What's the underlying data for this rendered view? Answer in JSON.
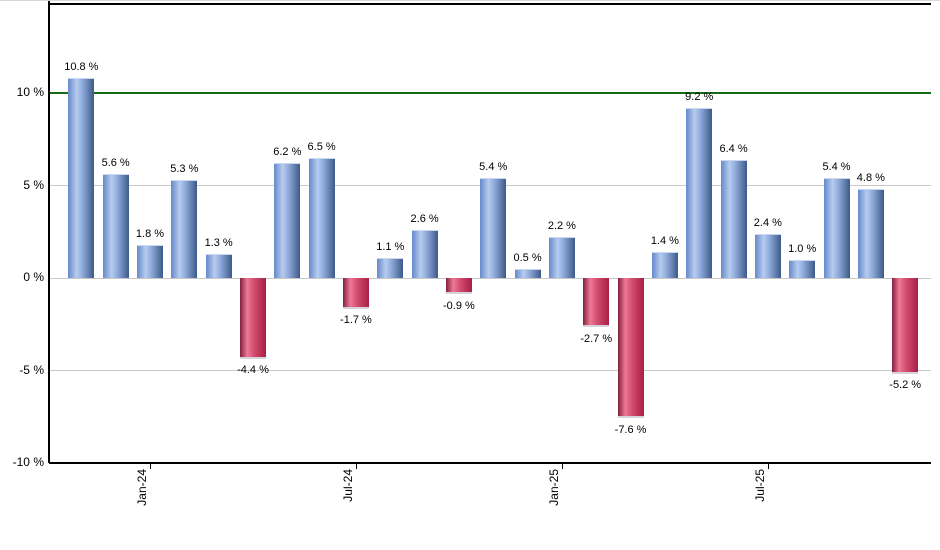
{
  "chart_data": {
    "type": "bar",
    "title": "",
    "unit": "%",
    "values": [
      10.8,
      5.6,
      1.8,
      5.3,
      1.3,
      -4.4,
      6.2,
      6.5,
      -1.7,
      1.1,
      2.6,
      -0.9,
      5.4,
      0.5,
      2.2,
      -2.7,
      -7.6,
      1.4,
      9.2,
      6.4,
      2.4,
      1.0,
      5.4,
      4.8,
      -5.2
    ],
    "bar_labels": [
      "10.8 %",
      "5.6 %",
      "1.8 %",
      "5.3 %",
      "1.3 %",
      "-4.4 %",
      "6.2 %",
      "6.5 %",
      "-1.7 %",
      "1.1 %",
      "2.6 %",
      "-0.9 %",
      "5.4 %",
      "0.5 %",
      "2.2 %",
      "-2.7 %",
      "-7.6 %",
      "1.4 %",
      "9.2 %",
      "6.4 %",
      "2.4 %",
      "1.0 %",
      "5.4 %",
      "4.8 %",
      "-5.2 %"
    ],
    "x_ticks": [
      {
        "label": "Jan-24",
        "bar_index": 2
      },
      {
        "label": "Jul-24",
        "bar_index": 8
      },
      {
        "label": "Jan-25",
        "bar_index": 14
      },
      {
        "label": "Jul-25",
        "bar_index": 20
      }
    ],
    "y_ticks": [
      {
        "label": "10 %",
        "value": 10
      },
      {
        "label": "5 %",
        "value": 5
      },
      {
        "label": "0 %",
        "value": 0
      },
      {
        "label": "-5 %",
        "value": -5
      },
      {
        "label": "-10 %",
        "value": -10
      }
    ],
    "ylim": [
      -10,
      15
    ],
    "grid": true,
    "legend": null,
    "reference_line": {
      "value": 10,
      "color": "#166b16"
    },
    "colors": {
      "positive_gradient": [
        "#6589cb",
        "#b7ccee",
        "#8fabdc",
        "#3d5a88"
      ],
      "negative_gradient": [
        "#82203e",
        "#ee7995",
        "#d14c6f",
        "#a81f45"
      ],
      "gridline": "#c8c8c8",
      "axis": "#000000",
      "label_text": "#000000"
    }
  }
}
